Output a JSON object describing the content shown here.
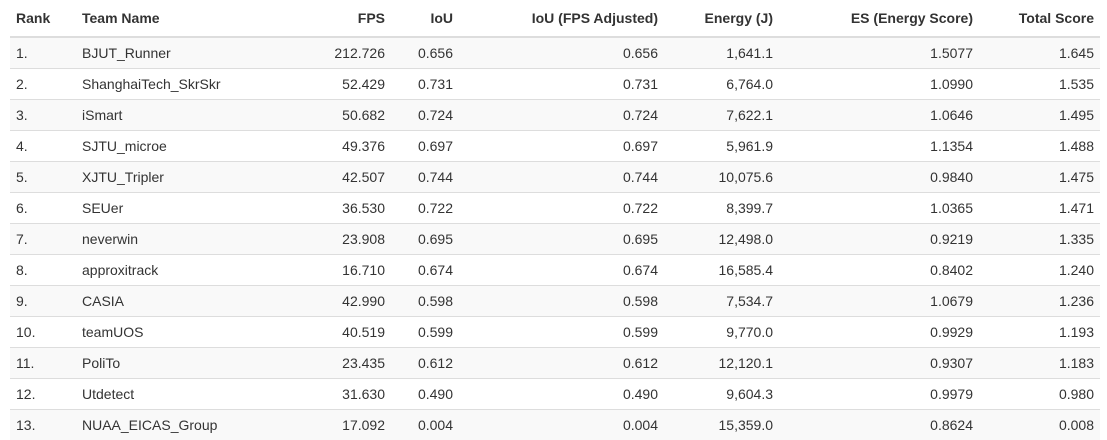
{
  "leaderboard": {
    "columns": [
      "Rank",
      "Team Name",
      "FPS",
      "IoU",
      "IoU (FPS Adjusted)",
      "Energy (J)",
      "ES (Energy Score)",
      "Total Score"
    ],
    "rows": [
      [
        "1.",
        "BJUT_Runner",
        "212.726",
        "0.656",
        "0.656",
        "1,641.1",
        "1.5077",
        "1.645"
      ],
      [
        "2.",
        "ShanghaiTech_SkrSkr",
        "52.429",
        "0.731",
        "0.731",
        "6,764.0",
        "1.0990",
        "1.535"
      ],
      [
        "3.",
        "iSmart",
        "50.682",
        "0.724",
        "0.724",
        "7,622.1",
        "1.0646",
        "1.495"
      ],
      [
        "4.",
        "SJTU_microe",
        "49.376",
        "0.697",
        "0.697",
        "5,961.9",
        "1.1354",
        "1.488"
      ],
      [
        "5.",
        "XJTU_Tripler",
        "42.507",
        "0.744",
        "0.744",
        "10,075.6",
        "0.9840",
        "1.475"
      ],
      [
        "6.",
        "SEUer",
        "36.530",
        "0.722",
        "0.722",
        "8,399.7",
        "1.0365",
        "1.471"
      ],
      [
        "7.",
        "neverwin",
        "23.908",
        "0.695",
        "0.695",
        "12,498.0",
        "0.9219",
        "1.335"
      ],
      [
        "8.",
        "approxitrack",
        "16.710",
        "0.674",
        "0.674",
        "16,585.4",
        "0.8402",
        "1.240"
      ],
      [
        "9.",
        "CASIA",
        "42.990",
        "0.598",
        "0.598",
        "7,534.7",
        "1.0679",
        "1.236"
      ],
      [
        "10.",
        "teamUOS",
        "40.519",
        "0.599",
        "0.599",
        "9,770.0",
        "0.9929",
        "1.193"
      ],
      [
        "11.",
        "PoliTo",
        "23.435",
        "0.612",
        "0.612",
        "12,120.1",
        "0.9307",
        "1.183"
      ],
      [
        "12.",
        "Utdetect",
        "31.630",
        "0.490",
        "0.490",
        "9,604.3",
        "0.9979",
        "0.980"
      ],
      [
        "13.",
        "NUAA_EICAS_Group",
        "17.092",
        "0.004",
        "0.004",
        "15,359.0",
        "0.8624",
        "0.008"
      ]
    ]
  }
}
